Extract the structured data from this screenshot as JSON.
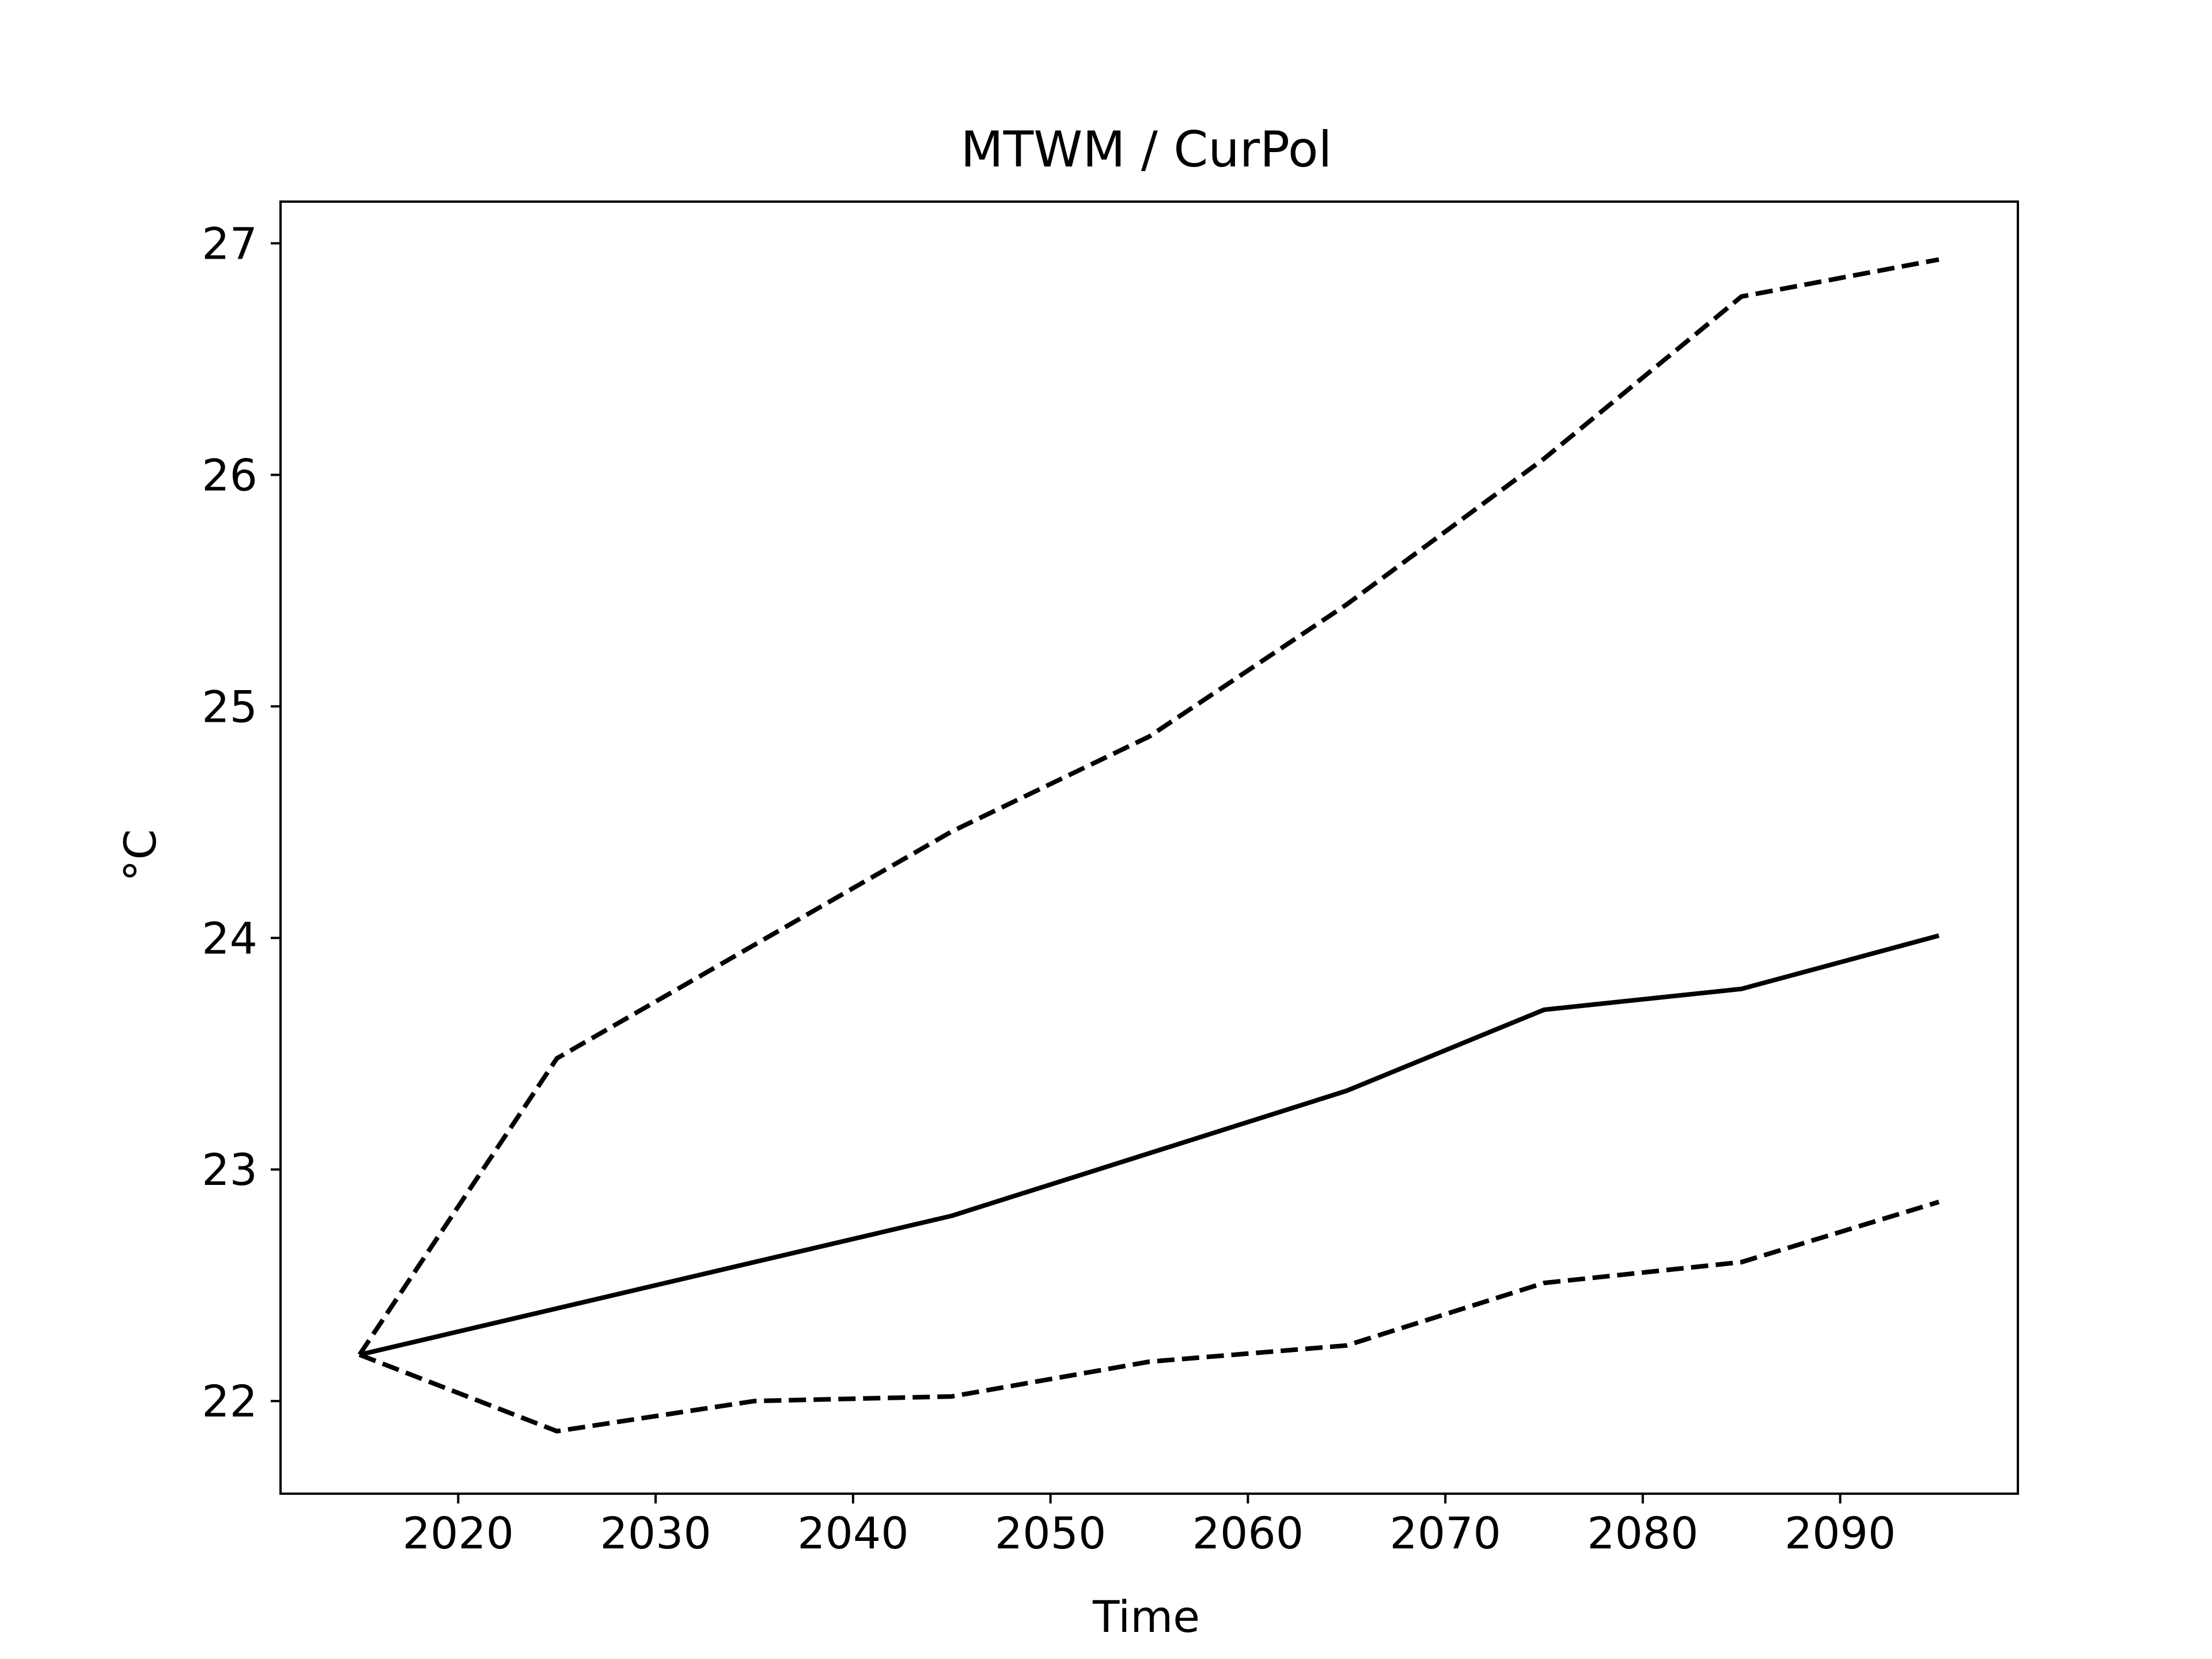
{
  "chart_data": {
    "type": "line",
    "title": "MTWM / CurPol",
    "xlabel": "Time",
    "ylabel": "°C",
    "xlim": [
      2011,
      2099
    ],
    "ylim": [
      21.6,
      27.18
    ],
    "xticks": [
      2020,
      2030,
      2040,
      2050,
      2060,
      2070,
      2080,
      2090
    ],
    "yticks": [
      22,
      23,
      24,
      25,
      26,
      27
    ],
    "x": [
      2015,
      2025,
      2035,
      2045,
      2055,
      2065,
      2075,
      2085,
      2095
    ],
    "grid": false,
    "legend": "none",
    "series": [
      {
        "style": "dashed",
        "color": "#000000",
        "values": [
          22.2,
          23.48,
          23.97,
          24.46,
          24.87,
          25.44,
          26.07,
          26.77,
          26.93
        ]
      },
      {
        "style": "solid",
        "color": "#000000",
        "values": [
          22.2,
          22.4,
          22.6,
          22.8,
          23.07,
          23.34,
          23.69,
          23.78,
          24.01
        ]
      },
      {
        "style": "dashed",
        "color": "#000000",
        "values": [
          22.2,
          21.87,
          22.0,
          22.02,
          22.17,
          22.24,
          22.51,
          22.6,
          22.86
        ]
      }
    ]
  }
}
